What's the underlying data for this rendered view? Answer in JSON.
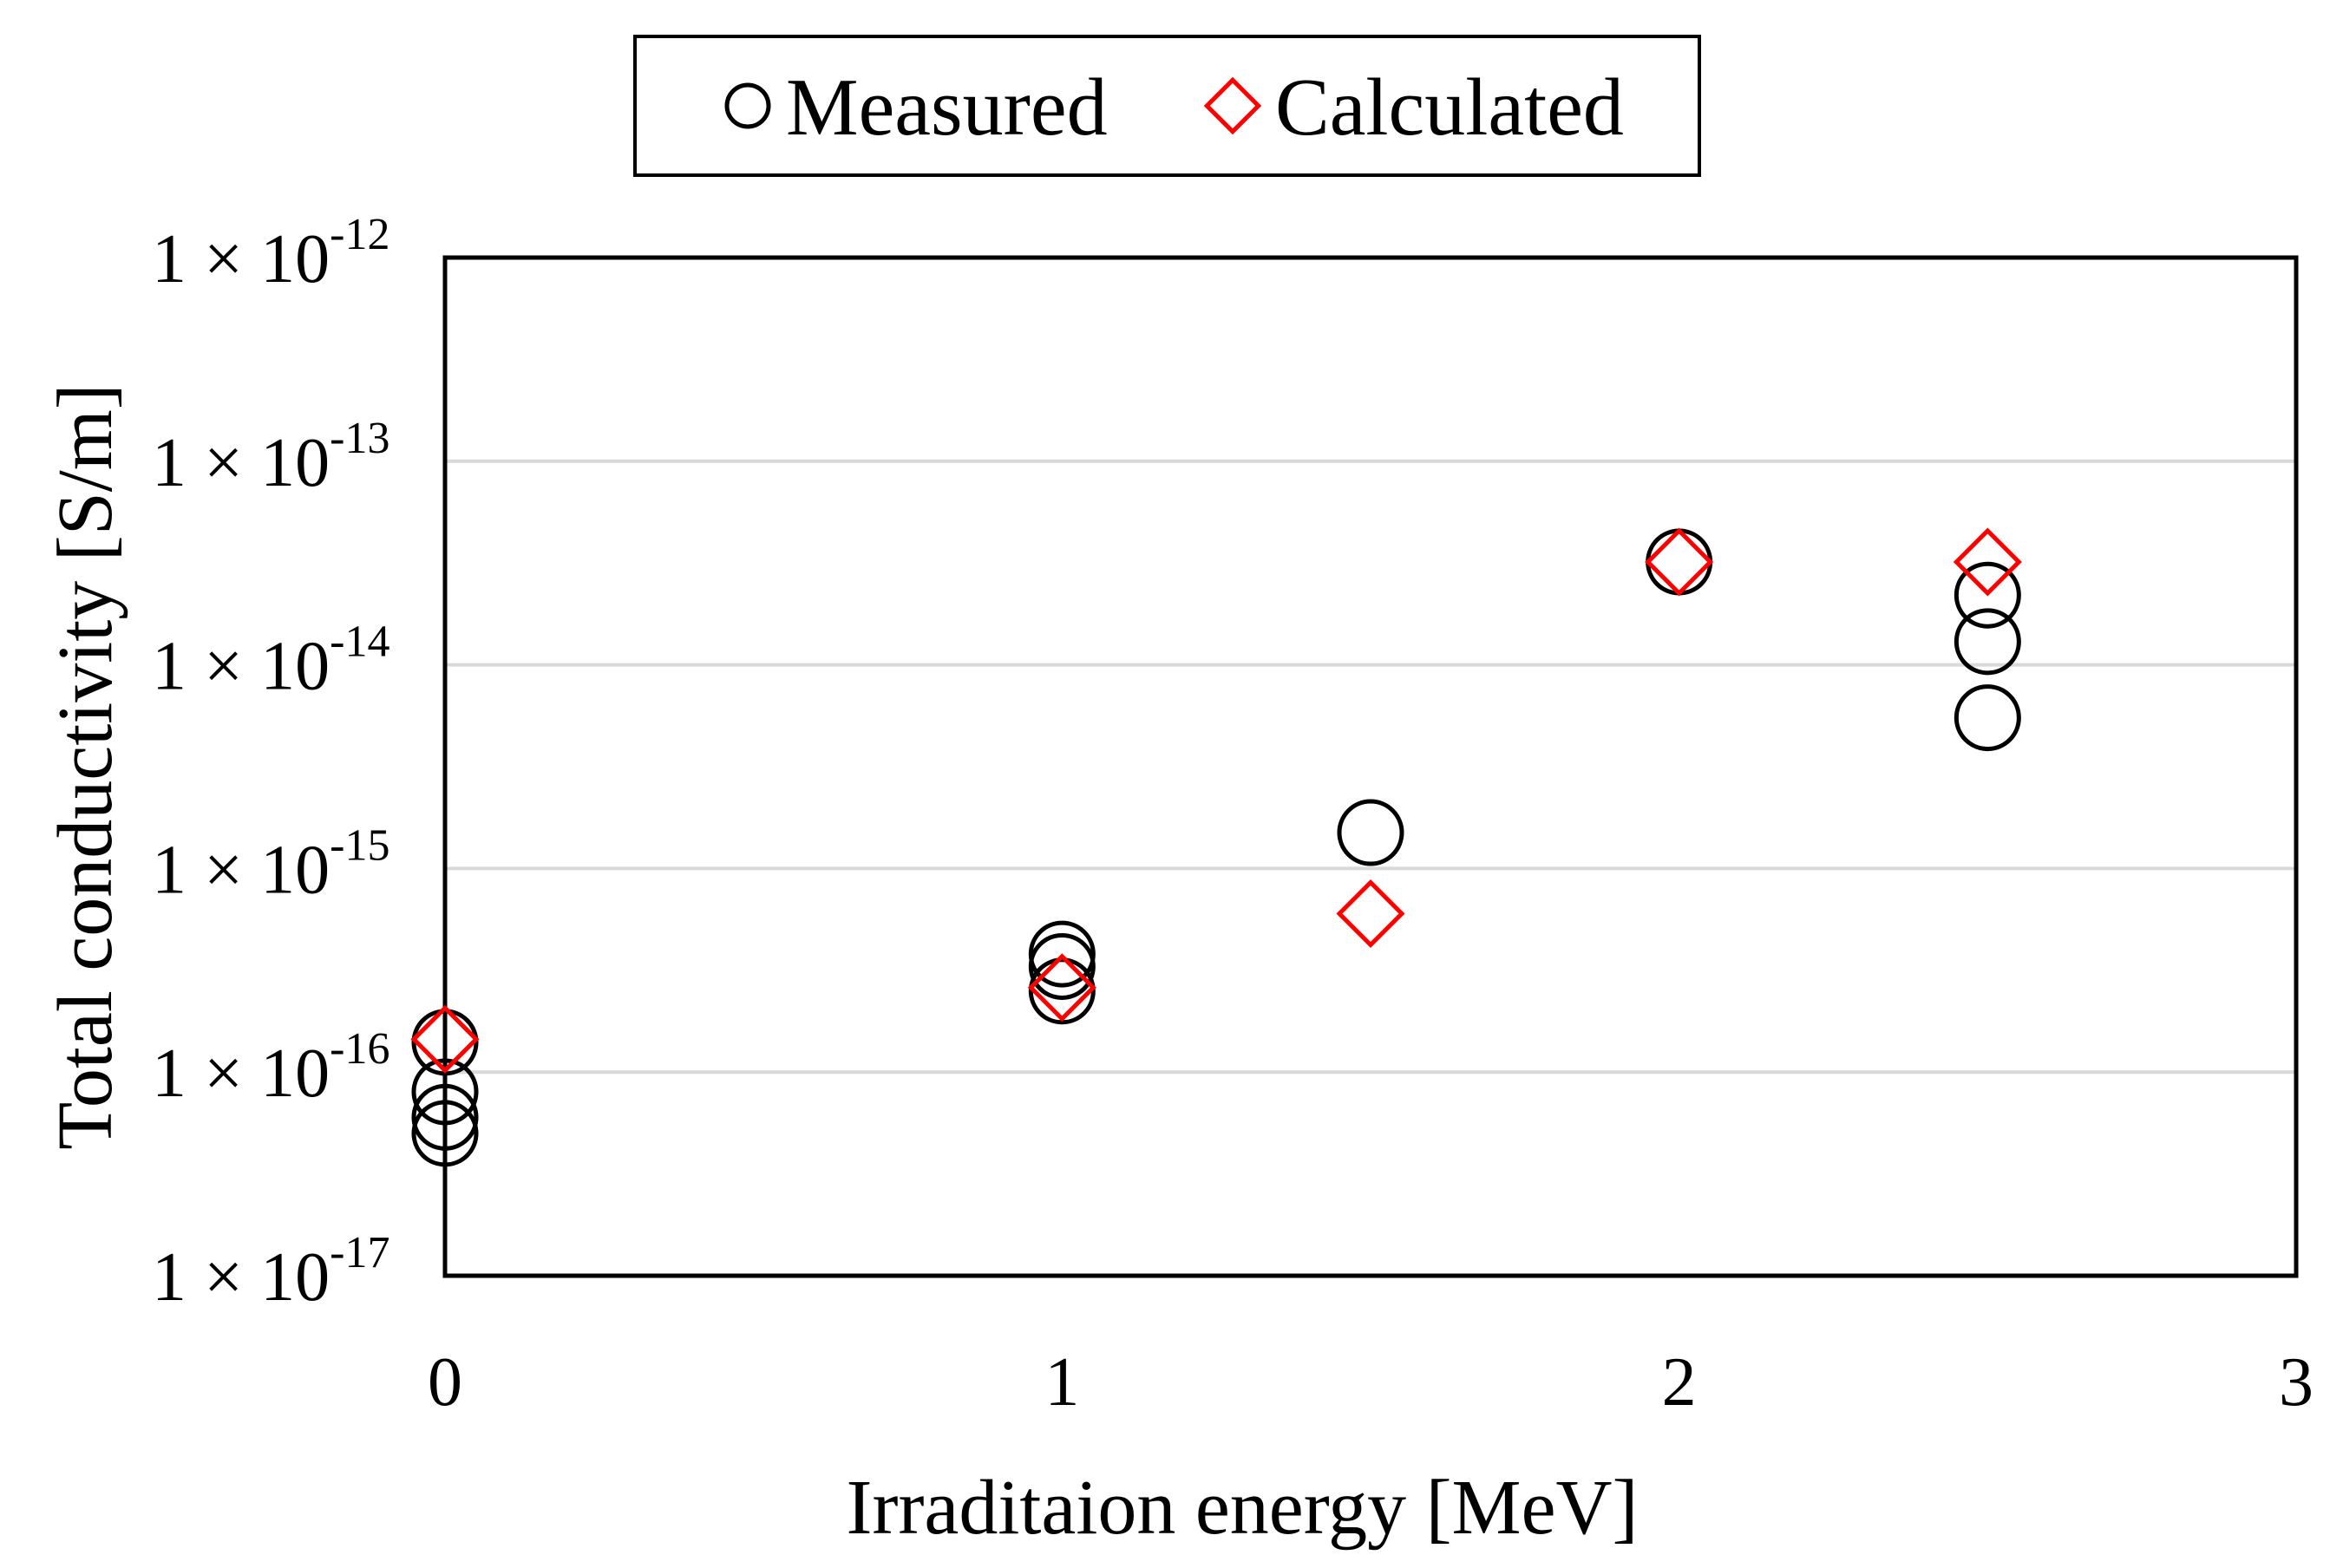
{
  "chart_data": {
    "type": "scatter",
    "title": "",
    "xlabel": "Irraditaion energy  [MeV]",
    "ylabel": "Total conductivity  [S/m]",
    "xlim": [
      0,
      3
    ],
    "ylim": [
      1e-17,
      1e-12
    ],
    "yscale": "log",
    "grid": "horizontal",
    "legend_position": "top",
    "x_ticks": [
      "0",
      "1",
      "2",
      "3"
    ],
    "y_ticks": [
      {
        "mantissa": "1 × 10",
        "exponent": "-17"
      },
      {
        "mantissa": "1 × 10",
        "exponent": "-16"
      },
      {
        "mantissa": "1 × 10",
        "exponent": "-15"
      },
      {
        "mantissa": "1 × 10",
        "exponent": "-14"
      },
      {
        "mantissa": "1 × 10",
        "exponent": "-13"
      },
      {
        "mantissa": "1 × 10",
        "exponent": "-12"
      }
    ],
    "series": [
      {
        "name": "Measured",
        "marker": "circle",
        "color": "#000000",
        "points": [
          {
            "x": 0,
            "y": 1.4e-16
          },
          {
            "x": 0,
            "y": 8e-17
          },
          {
            "x": 0,
            "y": 6e-17
          },
          {
            "x": 0,
            "y": 5e-17
          },
          {
            "x": 1,
            "y": 3.8e-16
          },
          {
            "x": 1,
            "y": 3.3e-16
          },
          {
            "x": 1,
            "y": 2.5e-16
          },
          {
            "x": 1.5,
            "y": 1.5e-15
          },
          {
            "x": 2,
            "y": 3.2e-14
          },
          {
            "x": 2.5,
            "y": 2.2e-14
          },
          {
            "x": 2.5,
            "y": 1.3e-14
          },
          {
            "x": 2.5,
            "y": 5.5e-15
          }
        ]
      },
      {
        "name": "Calculated",
        "marker": "diamond",
        "color": "#ff0000",
        "points": [
          {
            "x": 0,
            "y": 1.45e-16
          },
          {
            "x": 1,
            "y": 2.6e-16
          },
          {
            "x": 1.5,
            "y": 6e-16
          },
          {
            "x": 2,
            "y": 3.2e-14
          },
          {
            "x": 2.5,
            "y": 3.2e-14
          }
        ]
      }
    ]
  }
}
